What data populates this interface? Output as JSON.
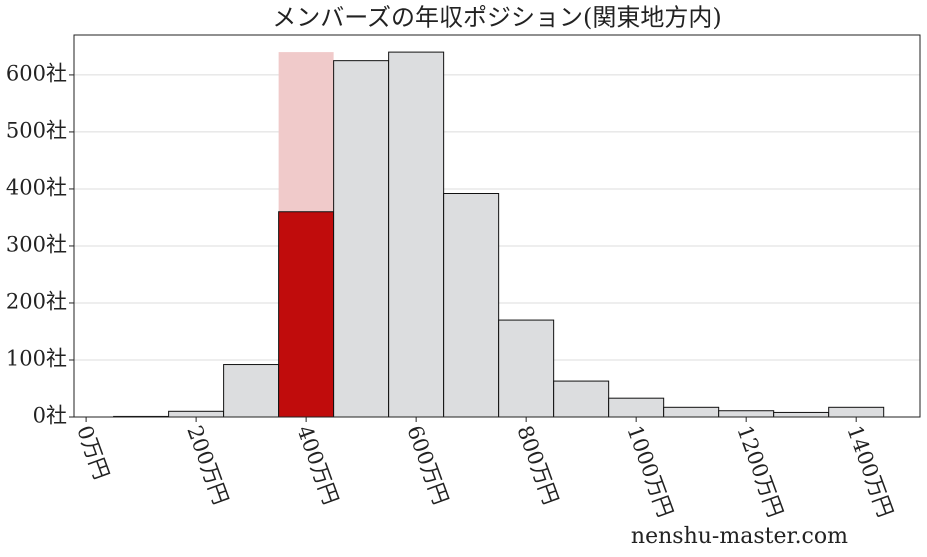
{
  "chart_data": {
    "type": "histogram",
    "title": "メンバーズの年収ポジション(関東地方内)",
    "bins": [
      50,
      150,
      250,
      350,
      450,
      550,
      650,
      750,
      850,
      950,
      1050,
      1150,
      1250,
      1350,
      1450
    ],
    "values": [
      1,
      10,
      92,
      360,
      625,
      640,
      392,
      170,
      63,
      33,
      17,
      11,
      8,
      17
    ],
    "color": "#dcdddf",
    "edge_color": "#111111",
    "highlight": {
      "bin": 3,
      "color": "#c00c0c",
      "background_value": 640,
      "background_color": "#f0caca"
    },
    "xlim": [
      -22,
      1516
    ],
    "ylim": [
      0,
      670
    ],
    "xticks": [
      {
        "value": 0,
        "label": "0万円"
      },
      {
        "value": 200,
        "label": "200万円"
      },
      {
        "value": 400,
        "label": "400万円"
      },
      {
        "value": 600,
        "label": "600万円"
      },
      {
        "value": 800,
        "label": "800万円"
      },
      {
        "value": 1000,
        "label": "1000万円"
      },
      {
        "value": 1200,
        "label": "1200万円"
      },
      {
        "value": 1400,
        "label": "1400万円"
      }
    ],
    "yticks": [
      {
        "value": 0,
        "label": "0社"
      },
      {
        "value": 100,
        "label": "100社"
      },
      {
        "value": 200,
        "label": "200社"
      },
      {
        "value": 300,
        "label": "300社"
      },
      {
        "value": 400,
        "label": "400社"
      },
      {
        "value": 500,
        "label": "500社"
      },
      {
        "value": 600,
        "label": "600社"
      }
    ],
    "grid": true,
    "watermark": "nenshu-master.com"
  }
}
